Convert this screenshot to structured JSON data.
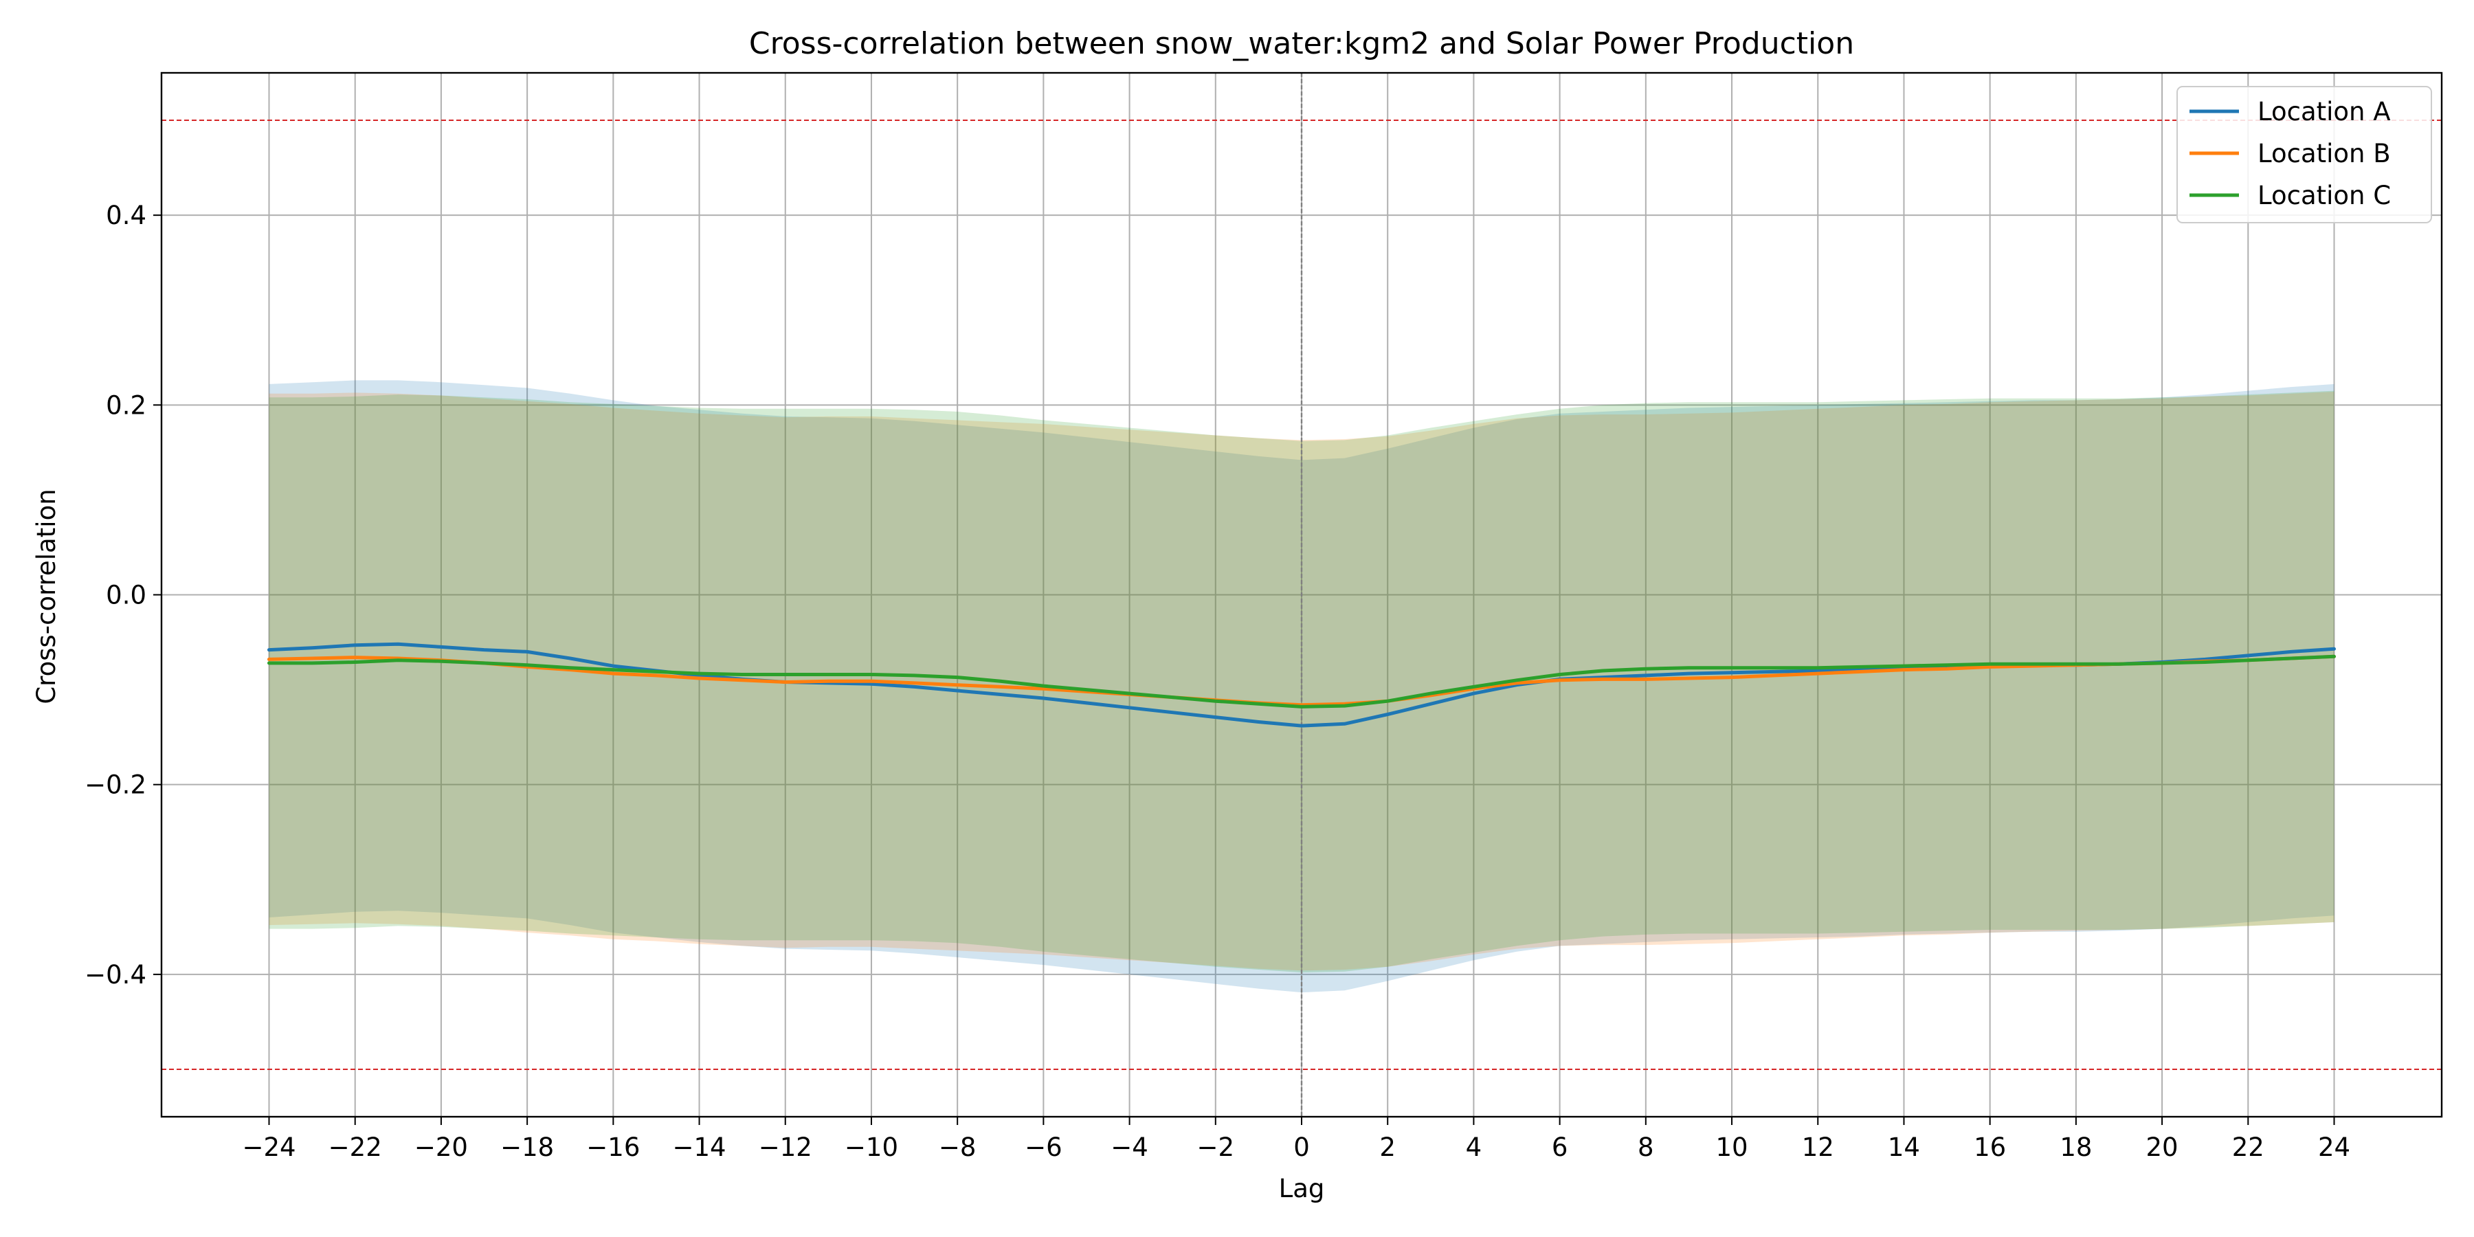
{
  "chart_data": {
    "type": "line",
    "title": "Cross-correlation between snow_water:kgm2 and Solar Power Production",
    "xlabel": "Lag",
    "ylabel": "Cross-correlation",
    "xlim": [
      -26.5,
      26.5
    ],
    "ylim": [
      -0.55,
      0.55
    ],
    "grid": true,
    "legend_position": "top-right",
    "x": [
      -24,
      -23,
      -22,
      -21,
      -20,
      -19,
      -18,
      -17,
      -16,
      -15,
      -14,
      -13,
      -12,
      -11,
      -10,
      -9,
      -8,
      -7,
      -6,
      -5,
      -4,
      -3,
      -2,
      -1,
      0,
      1,
      2,
      3,
      4,
      5,
      6,
      7,
      8,
      9,
      10,
      11,
      12,
      13,
      14,
      15,
      16,
      17,
      18,
      19,
      20,
      21,
      22,
      23,
      24
    ],
    "x_ticks": [
      -24,
      -22,
      -20,
      -18,
      -16,
      -14,
      -12,
      -10,
      -8,
      -6,
      -4,
      -2,
      0,
      2,
      4,
      6,
      8,
      10,
      12,
      14,
      16,
      18,
      20,
      22,
      24
    ],
    "y_ticks": [
      -0.4,
      -0.2,
      0.0,
      0.2,
      0.4
    ],
    "y_tick_labels": [
      "−0.4",
      "−0.2",
      "0.0",
      "0.2",
      "0.4"
    ],
    "x_tick_labels": [
      "−24",
      "−22",
      "−20",
      "−18",
      "−16",
      "−14",
      "−12",
      "−10",
      "−8",
      "−6",
      "−4",
      "−2",
      "0",
      "2",
      "4",
      "6",
      "8",
      "10",
      "12",
      "14",
      "16",
      "18",
      "20",
      "22",
      "24"
    ],
    "reference_lines": {
      "horizontal_dashed": [
        0.5,
        -0.5
      ],
      "horizontal_color": "#d62728",
      "vertical_dashed": [
        0
      ],
      "vertical_color": "#808080"
    },
    "series": [
      {
        "name": "Location A",
        "color": "#1f77b4",
        "values": [
          -0.058,
          -0.056,
          -0.053,
          -0.052,
          -0.055,
          -0.058,
          -0.06,
          -0.067,
          -0.075,
          -0.08,
          -0.085,
          -0.089,
          -0.092,
          -0.093,
          -0.094,
          -0.097,
          -0.101,
          -0.105,
          -0.109,
          -0.114,
          -0.119,
          -0.124,
          -0.129,
          -0.134,
          -0.138,
          -0.136,
          -0.126,
          -0.115,
          -0.104,
          -0.095,
          -0.089,
          -0.087,
          -0.085,
          -0.083,
          -0.082,
          -0.081,
          -0.08,
          -0.079,
          -0.077,
          -0.076,
          -0.075,
          -0.074,
          -0.074,
          -0.073,
          -0.071,
          -0.068,
          -0.064,
          -0.06,
          -0.057
        ],
        "upper": [
          0.222,
          0.224,
          0.226,
          0.226,
          0.224,
          0.221,
          0.218,
          0.212,
          0.205,
          0.199,
          0.195,
          0.191,
          0.188,
          0.187,
          0.186,
          0.183,
          0.179,
          0.175,
          0.171,
          0.166,
          0.161,
          0.156,
          0.151,
          0.146,
          0.142,
          0.144,
          0.154,
          0.165,
          0.176,
          0.185,
          0.191,
          0.193,
          0.195,
          0.197,
          0.198,
          0.199,
          0.2,
          0.201,
          0.202,
          0.203,
          0.204,
          0.205,
          0.205,
          0.206,
          0.208,
          0.211,
          0.215,
          0.219,
          0.222
        ],
        "lower": [
          -0.34,
          -0.337,
          -0.334,
          -0.333,
          -0.335,
          -0.338,
          -0.341,
          -0.348,
          -0.356,
          -0.361,
          -0.366,
          -0.37,
          -0.373,
          -0.374,
          -0.375,
          -0.378,
          -0.382,
          -0.386,
          -0.39,
          -0.395,
          -0.4,
          -0.405,
          -0.41,
          -0.415,
          -0.419,
          -0.417,
          -0.407,
          -0.396,
          -0.385,
          -0.376,
          -0.37,
          -0.368,
          -0.366,
          -0.364,
          -0.363,
          -0.362,
          -0.361,
          -0.36,
          -0.358,
          -0.357,
          -0.356,
          -0.355,
          -0.355,
          -0.354,
          -0.352,
          -0.349,
          -0.345,
          -0.341,
          -0.338
        ]
      },
      {
        "name": "Location B",
        "color": "#ff7f0e",
        "values": [
          -0.068,
          -0.067,
          -0.066,
          -0.067,
          -0.069,
          -0.072,
          -0.076,
          -0.079,
          -0.083,
          -0.085,
          -0.088,
          -0.09,
          -0.092,
          -0.091,
          -0.091,
          -0.093,
          -0.095,
          -0.097,
          -0.099,
          -0.102,
          -0.105,
          -0.108,
          -0.111,
          -0.114,
          -0.116,
          -0.115,
          -0.112,
          -0.106,
          -0.099,
          -0.093,
          -0.09,
          -0.089,
          -0.089,
          -0.088,
          -0.087,
          -0.085,
          -0.083,
          -0.081,
          -0.079,
          -0.078,
          -0.076,
          -0.075,
          -0.074,
          -0.073,
          -0.072,
          -0.07,
          -0.069,
          -0.067,
          -0.065
        ],
        "upper": [
          0.212,
          0.212,
          0.213,
          0.212,
          0.21,
          0.207,
          0.204,
          0.201,
          0.197,
          0.194,
          0.191,
          0.189,
          0.187,
          0.188,
          0.188,
          0.186,
          0.184,
          0.182,
          0.18,
          0.177,
          0.174,
          0.171,
          0.168,
          0.165,
          0.163,
          0.164,
          0.167,
          0.173,
          0.18,
          0.186,
          0.189,
          0.19,
          0.19,
          0.191,
          0.192,
          0.194,
          0.196,
          0.198,
          0.2,
          0.201,
          0.203,
          0.204,
          0.205,
          0.206,
          0.207,
          0.209,
          0.21,
          0.212,
          0.214
        ],
        "lower": [
          -0.348,
          -0.347,
          -0.346,
          -0.347,
          -0.349,
          -0.352,
          -0.356,
          -0.359,
          -0.363,
          -0.365,
          -0.368,
          -0.37,
          -0.372,
          -0.371,
          -0.371,
          -0.373,
          -0.375,
          -0.377,
          -0.379,
          -0.382,
          -0.385,
          -0.388,
          -0.391,
          -0.394,
          -0.396,
          -0.395,
          -0.392,
          -0.386,
          -0.379,
          -0.373,
          -0.37,
          -0.369,
          -0.369,
          -0.368,
          -0.367,
          -0.365,
          -0.363,
          -0.361,
          -0.359,
          -0.358,
          -0.356,
          -0.355,
          -0.354,
          -0.353,
          -0.352,
          -0.35,
          -0.349,
          -0.347,
          -0.345
        ]
      },
      {
        "name": "Location C",
        "color": "#2ca02c",
        "values": [
          -0.072,
          -0.072,
          -0.071,
          -0.069,
          -0.07,
          -0.072,
          -0.074,
          -0.077,
          -0.079,
          -0.081,
          -0.083,
          -0.084,
          -0.084,
          -0.084,
          -0.084,
          -0.085,
          -0.087,
          -0.091,
          -0.096,
          -0.1,
          -0.104,
          -0.108,
          -0.112,
          -0.115,
          -0.118,
          -0.117,
          -0.112,
          -0.104,
          -0.097,
          -0.09,
          -0.084,
          -0.08,
          -0.078,
          -0.077,
          -0.077,
          -0.077,
          -0.077,
          -0.076,
          -0.075,
          -0.074,
          -0.073,
          -0.073,
          -0.073,
          -0.073,
          -0.072,
          -0.071,
          -0.069,
          -0.067,
          -0.065
        ],
        "upper": [
          0.208,
          0.208,
          0.209,
          0.211,
          0.21,
          0.208,
          0.206,
          0.203,
          0.201,
          0.199,
          0.197,
          0.196,
          0.196,
          0.196,
          0.196,
          0.195,
          0.193,
          0.189,
          0.184,
          0.18,
          0.176,
          0.172,
          0.168,
          0.165,
          0.162,
          0.163,
          0.168,
          0.176,
          0.183,
          0.19,
          0.196,
          0.2,
          0.202,
          0.203,
          0.203,
          0.203,
          0.203,
          0.204,
          0.205,
          0.206,
          0.207,
          0.207,
          0.207,
          0.207,
          0.208,
          0.209,
          0.211,
          0.213,
          0.215
        ],
        "lower": [
          -0.352,
          -0.352,
          -0.351,
          -0.349,
          -0.35,
          -0.352,
          -0.354,
          -0.357,
          -0.359,
          -0.361,
          -0.363,
          -0.364,
          -0.364,
          -0.364,
          -0.364,
          -0.365,
          -0.367,
          -0.371,
          -0.376,
          -0.38,
          -0.384,
          -0.388,
          -0.392,
          -0.395,
          -0.398,
          -0.397,
          -0.392,
          -0.384,
          -0.377,
          -0.37,
          -0.364,
          -0.36,
          -0.358,
          -0.357,
          -0.357,
          -0.357,
          -0.357,
          -0.356,
          -0.355,
          -0.354,
          -0.353,
          -0.353,
          -0.353,
          -0.353,
          -0.352,
          -0.351,
          -0.349,
          -0.347,
          -0.345
        ]
      }
    ]
  }
}
